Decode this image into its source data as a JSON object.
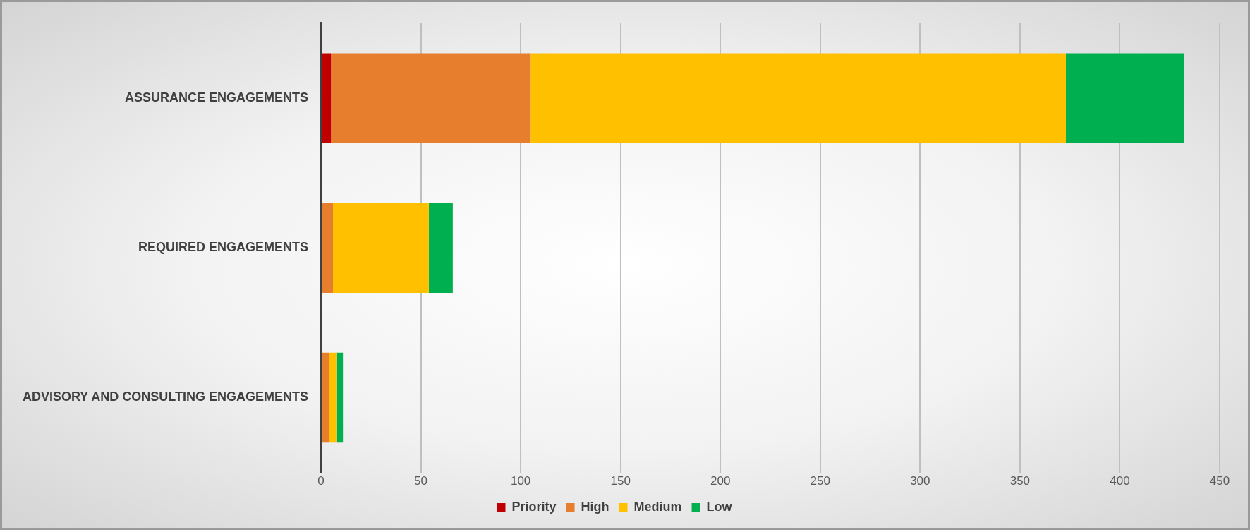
{
  "chart_data": {
    "type": "bar",
    "orientation": "horizontal",
    "stacked": true,
    "categories": [
      "ASSURANCE ENGAGEMENTS",
      "REQUIRED ENGAGEMENTS",
      "ADVISORY AND CONSULTING ENGAGEMENTS"
    ],
    "series": [
      {
        "name": "Priority",
        "color": "#c00000",
        "values": [
          5,
          0,
          0
        ]
      },
      {
        "name": "High",
        "color": "#e67e2e",
        "values": [
          100,
          6,
          4
        ]
      },
      {
        "name": "Medium",
        "color": "#ffc000",
        "values": [
          268,
          48,
          4
        ]
      },
      {
        "name": "Low",
        "color": "#00b050",
        "values": [
          59,
          12,
          3
        ]
      }
    ],
    "xlim": [
      0,
      450
    ],
    "xticks": [
      0,
      50,
      100,
      150,
      200,
      250,
      300,
      350,
      400,
      450
    ],
    "grid": "x",
    "legend": "bottom"
  }
}
